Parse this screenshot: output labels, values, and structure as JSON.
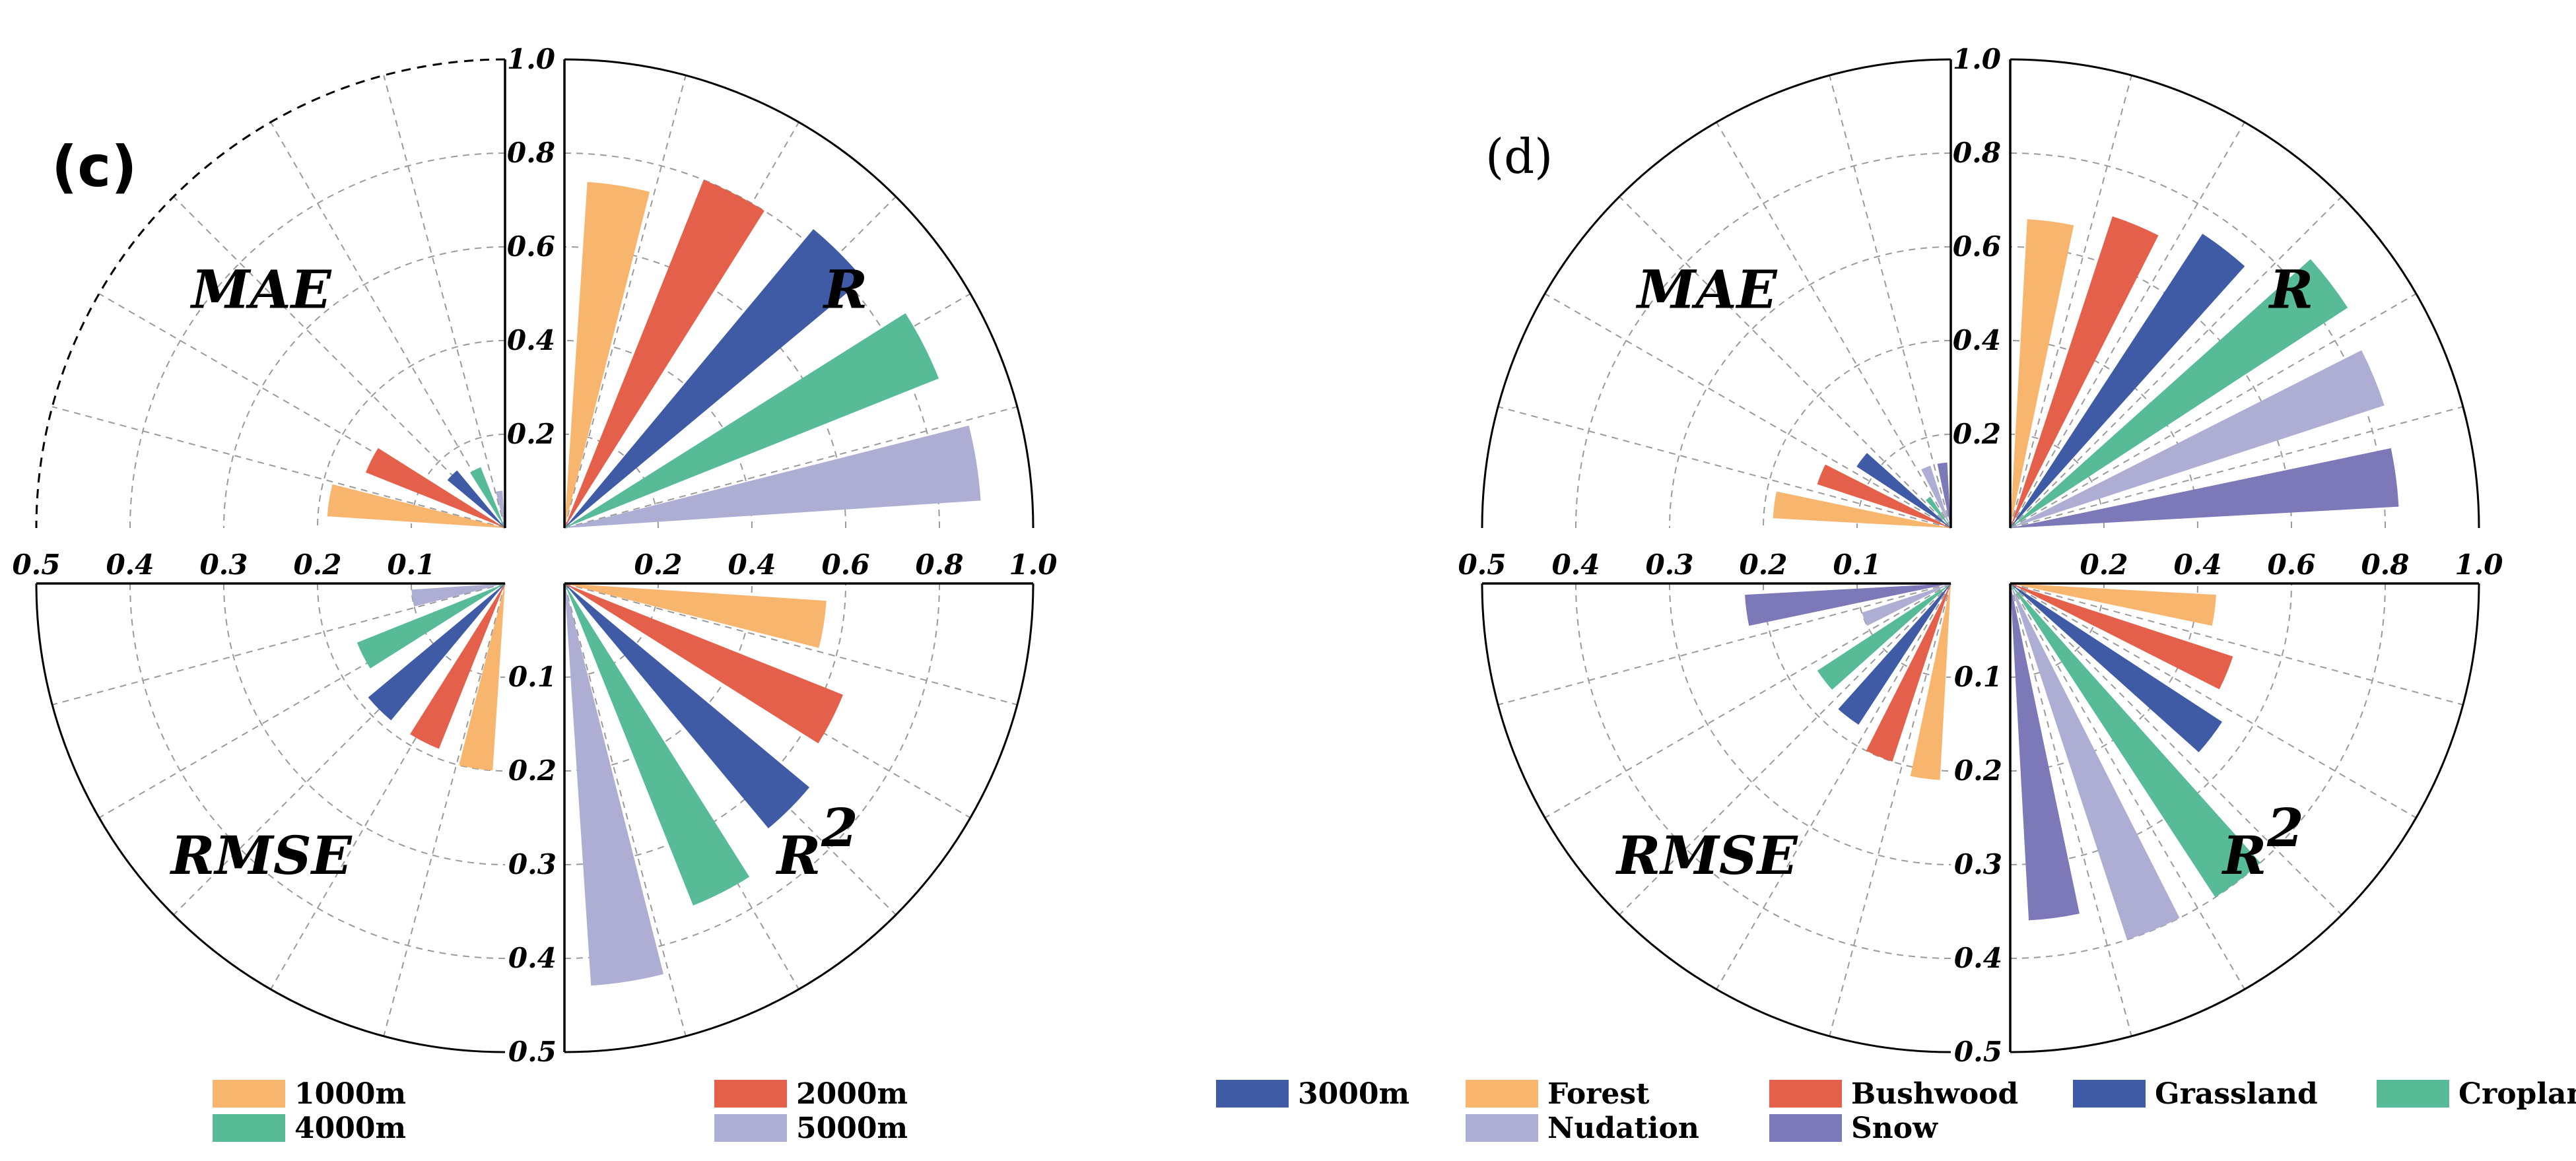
{
  "chart_data": [
    {
      "type": "polar-bar",
      "panel_label": "(c)",
      "quadrants": {
        "R": {
          "label": "R",
          "ticks": [
            "0.2",
            "0.4",
            "0.6",
            "0.8",
            "1.0"
          ],
          "max": 1.0
        },
        "R2": {
          "label": "R",
          "label_sup": "2",
          "ticks": [
            "0.1",
            "0.2",
            "0.3",
            "0.4",
            "0.5"
          ],
          "max": 0.5
        },
        "MAE": {
          "label": "MAE",
          "ticks": [
            "0.5",
            "0.4",
            "0.3",
            "0.2",
            "0.1"
          ],
          "max": 0.5
        },
        "RMSE": {
          "label": "RMSE",
          "max": 0.5
        }
      },
      "top_ticks": [
        "0.2",
        "0.4",
        "0.6",
        "0.8",
        "1.0"
      ],
      "series": [
        {
          "name": "1000m",
          "color": "#f7b56e",
          "R": 0.74,
          "R2": 0.28,
          "MAE": 0.19,
          "RMSE": 0.2
        },
        {
          "name": "2000m",
          "color": "#e5604a",
          "R": 0.8,
          "R2": 0.32,
          "MAE": 0.16,
          "RMSE": 0.19
        },
        {
          "name": "3000m",
          "color": "#3f5ba6",
          "R": 0.83,
          "R2": 0.34,
          "MAE": 0.08,
          "RMSE": 0.19
        },
        {
          "name": "4000m",
          "color": "#58bb98",
          "R": 0.86,
          "R2": 0.37,
          "MAE": 0.07,
          "RMSE": 0.17
        },
        {
          "name": "5000m",
          "color": "#aeaed4",
          "R": 0.89,
          "R2": 0.43,
          "MAE": 0.04,
          "RMSE": 0.1
        }
      ],
      "legend": {
        "layout": "3-columns-bottom"
      }
    },
    {
      "type": "polar-bar",
      "panel_label": "(d)",
      "quadrants": {
        "R": {
          "label": "R",
          "ticks": [
            "0.2",
            "0.4",
            "0.6",
            "0.8",
            "1.0"
          ],
          "max": 1.0
        },
        "R2": {
          "label": "R",
          "label_sup": "2",
          "ticks": [
            "0.1",
            "0.2",
            "0.3",
            "0.4",
            "0.5"
          ],
          "max": 0.5
        },
        "MAE": {
          "label": "MAE",
          "ticks": [
            "0.5",
            "0.4",
            "0.3",
            "0.2",
            "0.1"
          ],
          "max": 0.5
        },
        "RMSE": {
          "label": "RMSE",
          "max": 0.5
        }
      },
      "top_ticks": [
        "0.2",
        "0.4",
        "0.6",
        "0.8",
        "1.0"
      ],
      "series": [
        {
          "name": "Forest",
          "color": "#f7b56e",
          "R": 0.66,
          "R2": 0.22,
          "MAE": 0.19,
          "RMSE": 0.21
        },
        {
          "name": "Bushwood",
          "color": "#e5604a",
          "R": 0.7,
          "R2": 0.25,
          "MAE": 0.15,
          "RMSE": 0.2
        },
        {
          "name": "Grassland",
          "color": "#3f5ba6",
          "R": 0.75,
          "R2": 0.27,
          "MAE": 0.12,
          "RMSE": 0.18
        },
        {
          "name": "Cropland",
          "color": "#58bb98",
          "R": 0.86,
          "R2": 0.4,
          "MAE": 0.04,
          "RMSE": 0.17
        },
        {
          "name": "Nudation",
          "color": "#aeaed4",
          "R": 0.84,
          "R2": 0.4,
          "MAE": 0.07,
          "RMSE": 0.1
        },
        {
          "name": "Snow",
          "color": "#7d78b8",
          "R": 0.83,
          "R2": 0.36,
          "MAE": 0.07,
          "RMSE": 0.22
        }
      ],
      "legend": {
        "layout": "4-columns-bottom"
      }
    }
  ]
}
